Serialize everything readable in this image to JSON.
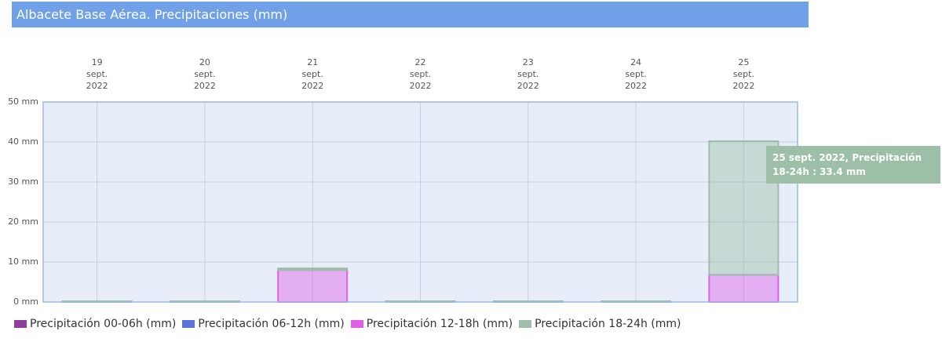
{
  "chart_data": {
    "type": "stacked-bar",
    "title": "Albacete Base Aérea. Precipitaciones (mm)",
    "categories": [
      "19 sept. 2022",
      "20 sept. 2022",
      "21 sept. 2022",
      "22 sept. 2022",
      "23 sept. 2022",
      "24 sept. 2022",
      "25 sept. 2022"
    ],
    "series": [
      {
        "name": "Precipitación 00-06h (mm)",
        "color": "#8e3f9e",
        "values": [
          0,
          0,
          0,
          0,
          0,
          0,
          0
        ]
      },
      {
        "name": "Precipitación 06-12h (mm)",
        "color": "#5b73d6",
        "values": [
          0,
          0,
          0,
          0,
          0,
          0,
          0
        ]
      },
      {
        "name": "Precipitación 12-18h (mm)",
        "color": "#e060e8",
        "values": [
          0,
          0,
          8.0,
          0,
          0,
          0,
          6.8
        ]
      },
      {
        "name": "Precipitación 18-24h (mm)",
        "color": "#9dbfa8",
        "values": [
          0.2,
          0.2,
          0.4,
          0.2,
          0.2,
          0.2,
          33.4
        ]
      }
    ],
    "ylim": [
      0,
      50
    ],
    "yticks": [
      {
        "value": 0,
        "label": "0 mm"
      },
      {
        "value": 10,
        "label": "10 mm"
      },
      {
        "value": 20,
        "label": "20 mm"
      },
      {
        "value": 30,
        "label": "30 mm"
      },
      {
        "value": 40,
        "label": "40 mm"
      },
      {
        "value": 50,
        "label": "50 mm"
      }
    ],
    "grid": true,
    "annotation": "25 sept. 2022, Precipitación 18-24h : 33.4 mm"
  }
}
